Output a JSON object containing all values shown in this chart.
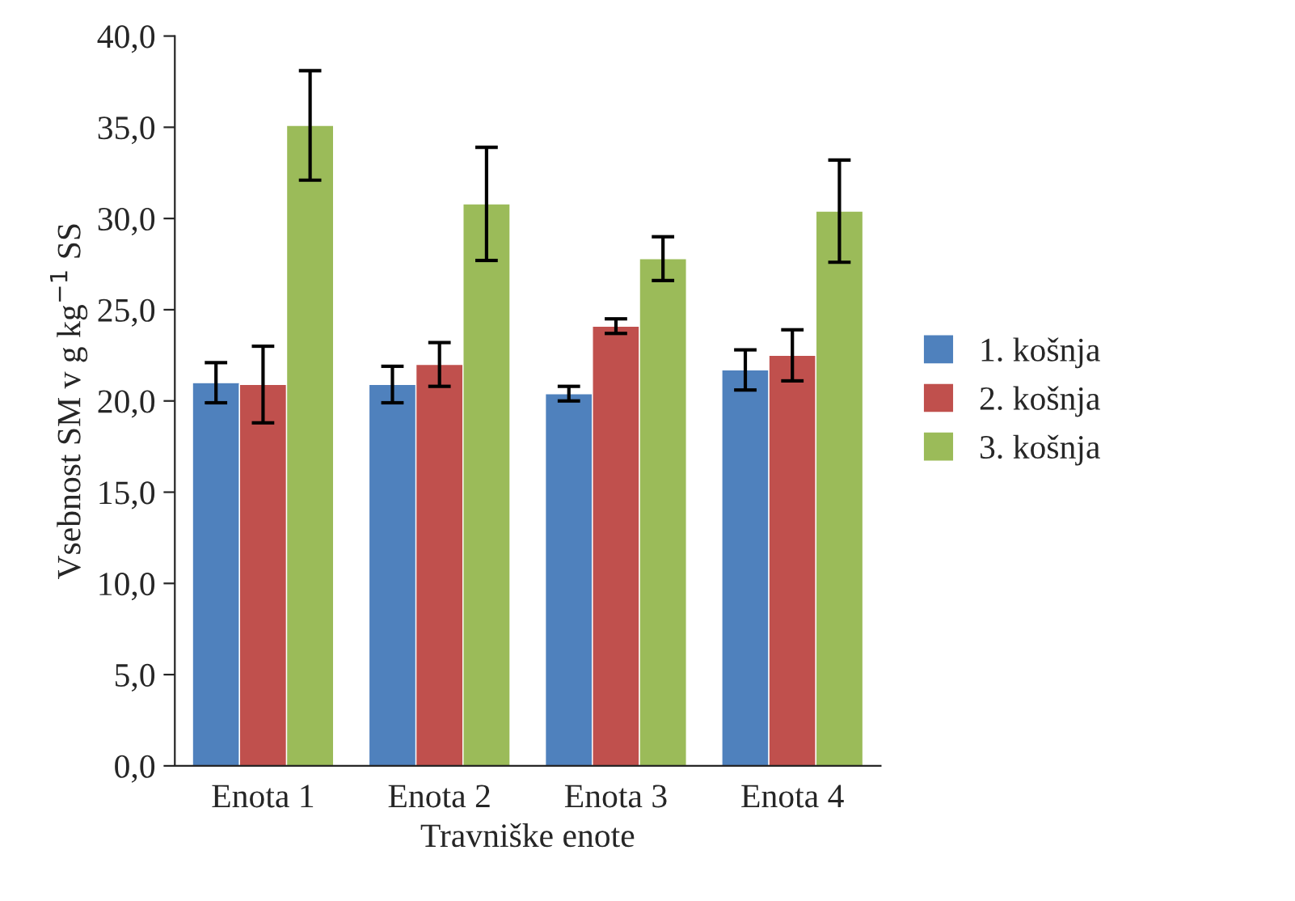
{
  "chart_data": {
    "type": "bar",
    "xlabel": "Travniške enote",
    "ylabel": "Vsebnost SM v g kg$^{−1}$ SS",
    "categories": [
      "Enota 1",
      "Enota 2",
      "Enota 3",
      "Enota 4"
    ],
    "series": [
      {
        "name": "1. košnja",
        "color": "#4f81bd",
        "values": [
          21.0,
          20.9,
          20.4,
          21.7
        ],
        "errors": [
          1.1,
          1.0,
          0.4,
          1.1
        ]
      },
      {
        "name": "2. košnja",
        "color": "#c0504d",
        "values": [
          20.9,
          22.0,
          24.1,
          22.5
        ],
        "errors": [
          2.1,
          1.2,
          0.4,
          1.4
        ]
      },
      {
        "name": "3. košnja",
        "color": "#9bbb59",
        "values": [
          35.1,
          30.8,
          27.8,
          30.4
        ],
        "errors": [
          3.0,
          3.1,
          1.2,
          2.8
        ]
      }
    ],
    "ylim": [
      0,
      40
    ],
    "yticks": [
      {
        "value": 0,
        "label": "0,0"
      },
      {
        "value": 5,
        "label": "5,0"
      },
      {
        "value": 10,
        "label": "10,0"
      },
      {
        "value": 15,
        "label": "15,0"
      },
      {
        "value": 20,
        "label": "20,0"
      },
      {
        "value": 25,
        "label": "25,0"
      },
      {
        "value": 30,
        "label": "30,0"
      },
      {
        "value": 35,
        "label": "35,0"
      },
      {
        "value": 40,
        "label": "40,0"
      }
    ],
    "grid": false,
    "legend": "right"
  }
}
